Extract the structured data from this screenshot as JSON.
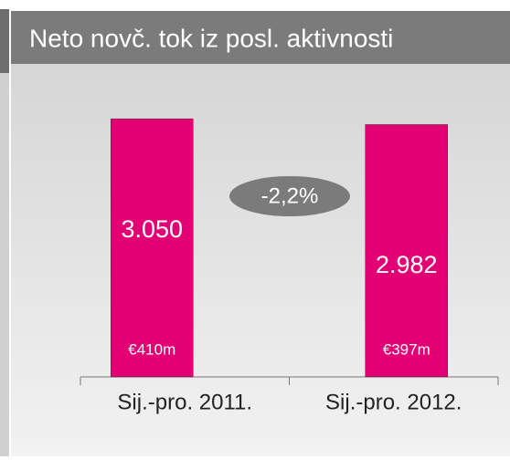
{
  "chart_data": {
    "type": "bar",
    "title": "Neto novč. tok iz posl. aktivnosti",
    "categories": [
      "Sij.-pro. 2011.",
      "Sij.-pro. 2012."
    ],
    "values": [
      3050,
      2982
    ],
    "value_labels": [
      "3.050",
      "2.982"
    ],
    "bar_notes": [
      "€410m",
      "€397m"
    ],
    "annotation": "-2,2%",
    "color": "#e20074",
    "ylim": [
      0,
      3300
    ]
  }
}
